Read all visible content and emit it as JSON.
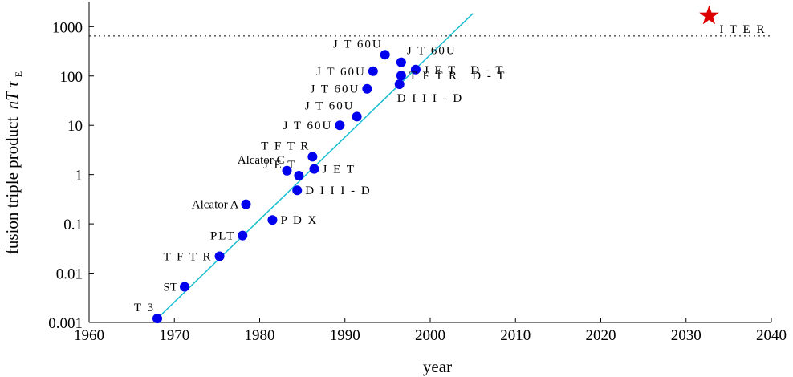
{
  "chart_data": {
    "type": "scatter",
    "title": "",
    "xlabel": "year",
    "ylabel": "fusion triple product",
    "ylabel_symbol": "nT",
    "ylabel_tau": "τ",
    "ylabel_sub": "E",
    "x_scale": "linear",
    "y_scale": "log",
    "xlim": [
      1960,
      2040
    ],
    "ylim": [
      0.001,
      3000
    ],
    "x_ticks": [
      1960,
      1970,
      1980,
      1990,
      2000,
      2010,
      2020,
      2030,
      2040
    ],
    "x_tick_labels": [
      "1960",
      "1970",
      "1980",
      "1990",
      "2000",
      "2010",
      "2020",
      "2030",
      "2040"
    ],
    "y_ticks": [
      0.001,
      0.01,
      0.1,
      1,
      10,
      100,
      1000
    ],
    "y_tick_labels": [
      "0.001",
      "0.01",
      "0.1",
      "1",
      "10",
      "100",
      "1000"
    ],
    "colors": {
      "points": "#0000ee",
      "trend": "#17becf",
      "target": "#dd0000",
      "reference": "#000000"
    },
    "points": [
      {
        "name": "T 3",
        "x": 1968,
        "y": 0.0012,
        "style": "wide",
        "anchor": "left-above"
      },
      {
        "name": "ST",
        "x": 1971.2,
        "y": 0.0053,
        "style": "normal",
        "anchor": "left"
      },
      {
        "name": "T F T R",
        "x": 1975.3,
        "y": 0.022,
        "style": "wide",
        "anchor": "left"
      },
      {
        "name": "PLT",
        "x": 1978,
        "y": 0.058,
        "style": "wide",
        "anchor": "left"
      },
      {
        "name": "P D X",
        "x": 1981.5,
        "y": 0.12,
        "style": "wide",
        "anchor": "right"
      },
      {
        "name": "Alcator A",
        "x": 1978.4,
        "y": 0.25,
        "style": "normal",
        "anchor": "left"
      },
      {
        "name": "D I I I - D",
        "x": 1984.4,
        "y": 0.48,
        "style": "wide",
        "anchor": "right"
      },
      {
        "name": "J E T",
        "x": 1984.6,
        "y": 0.95,
        "style": "wide",
        "anchor": "left-above"
      },
      {
        "name": "Alcator C",
        "x": 1983.2,
        "y": 1.2,
        "style": "normal",
        "anchor": "left-above"
      },
      {
        "name": "J E T",
        "x": 1986.4,
        "y": 1.3,
        "style": "wide",
        "anchor": "right"
      },
      {
        "name": "T F T R",
        "x": 1986.2,
        "y": 2.3,
        "style": "wide",
        "anchor": "left-above"
      },
      {
        "name": "J T 60U",
        "x": 1989.4,
        "y": 10,
        "style": "wide",
        "anchor": "left"
      },
      {
        "name": "J T 60U",
        "x": 1991.4,
        "y": 15,
        "style": "wide",
        "anchor": "left-above"
      },
      {
        "name": "J T 60U",
        "x": 1992.6,
        "y": 55,
        "style": "wide",
        "anchor": "left"
      },
      {
        "name": "J T 60U",
        "x": 1993.3,
        "y": 125,
        "style": "wide",
        "anchor": "left"
      },
      {
        "name": "J T 60U",
        "x": 1994.7,
        "y": 270,
        "style": "wide",
        "anchor": "left-above"
      },
      {
        "name": "J T 60U",
        "x": 1996.6,
        "y": 190,
        "style": "wide",
        "anchor": "right-above"
      },
      {
        "name": "J E T   D - T",
        "x": 1998.3,
        "y": 135,
        "style": "wide",
        "anchor": "right"
      },
      {
        "name": "T F T R   D - T",
        "x": 1996.6,
        "y": 102,
        "style": "wide",
        "anchor": "right"
      },
      {
        "name": "D I I I - D",
        "x": 1996.4,
        "y": 68,
        "style": "wide",
        "anchor": "right-below"
      }
    ],
    "trend_line": {
      "x": [
        1968,
        2005
      ],
      "y": [
        0.0012,
        1850
      ]
    },
    "reference_line": {
      "y": 650
    },
    "target": {
      "name": "I T E R",
      "x": 2032.7,
      "y": 1600,
      "marker": "star"
    }
  }
}
